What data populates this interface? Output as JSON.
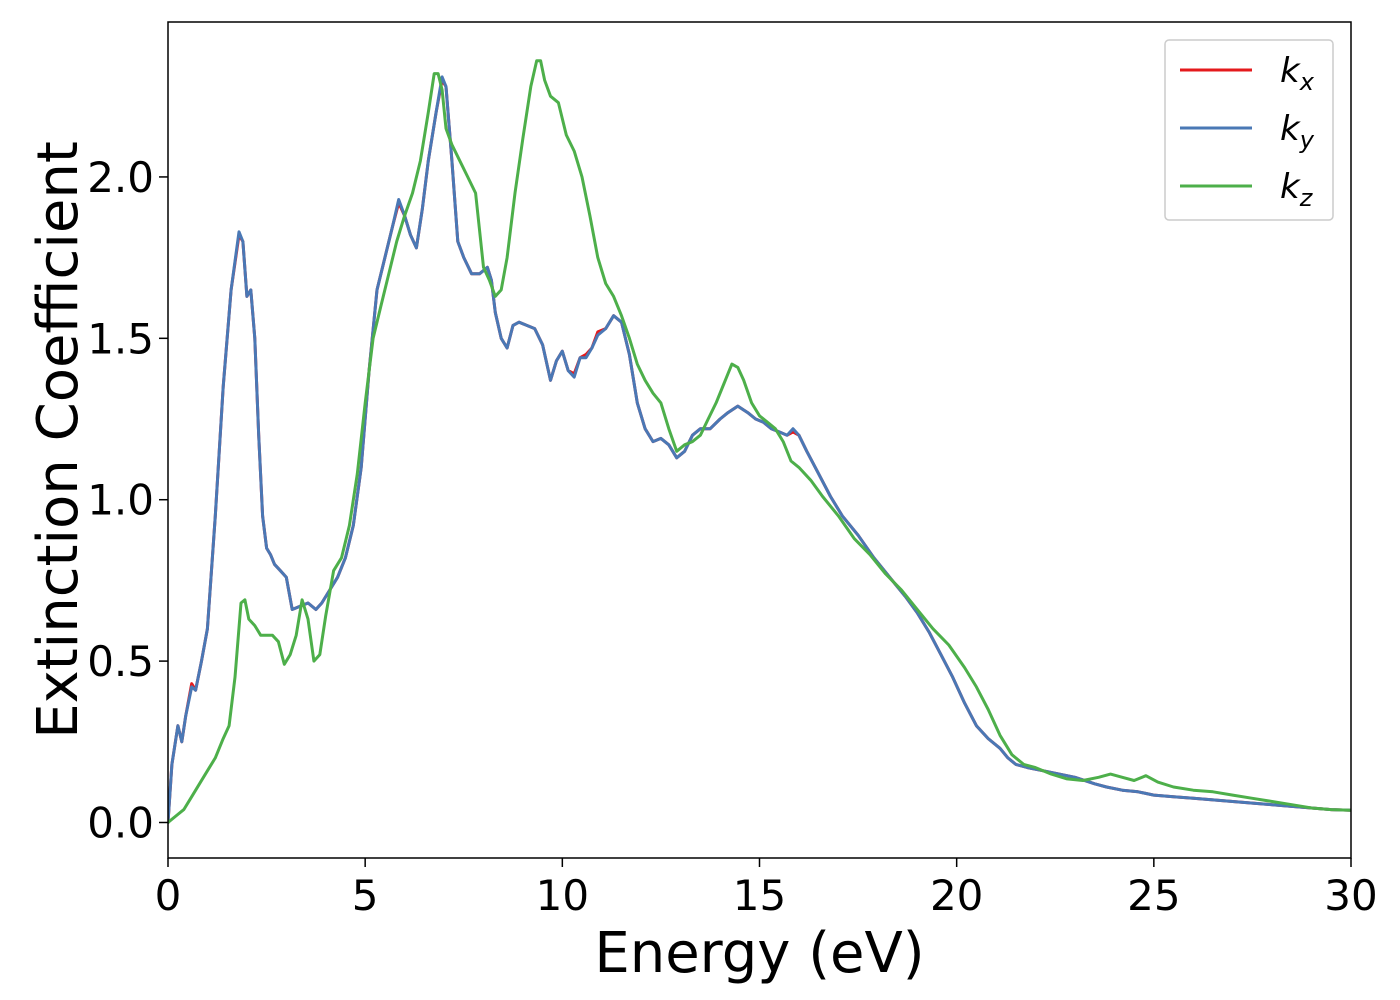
{
  "chart_data": {
    "type": "line",
    "title": "",
    "xlabel": "Energy (eV)",
    "ylabel": "Extinction Coefficient",
    "xlim": [
      0,
      30
    ],
    "ylim": [
      -0.11,
      2.48
    ],
    "xticks": [
      0,
      5,
      10,
      15,
      20,
      25,
      30
    ],
    "xtick_labels": [
      "0",
      "5",
      "10",
      "15",
      "20",
      "25",
      "30"
    ],
    "yticks": [
      0.0,
      0.5,
      1.0,
      1.5,
      2.0
    ],
    "ytick_labels": [
      "0.0",
      "0.5",
      "1.0",
      "1.5",
      "2.0"
    ],
    "grid": false,
    "legend_position": "top-right",
    "series": [
      {
        "name": "k_x",
        "legend_base": "k",
        "legend_sub": "x",
        "color": "#e41a1c",
        "x": [
          0,
          0.1,
          0.25,
          0.35,
          0.45,
          0.6,
          0.7,
          0.85,
          1.0,
          1.2,
          1.4,
          1.6,
          1.8,
          1.9,
          2.0,
          2.1,
          2.2,
          2.3,
          2.4,
          2.5,
          2.6,
          2.7,
          2.85,
          3.0,
          3.15,
          3.35,
          3.55,
          3.75,
          3.9,
          4.1,
          4.3,
          4.5,
          4.7,
          4.9,
          5.1,
          5.3,
          5.5,
          5.7,
          5.85,
          6.0,
          6.15,
          6.3,
          6.45,
          6.6,
          6.8,
          6.95,
          7.05,
          7.2,
          7.35,
          7.5,
          7.7,
          7.9,
          8.1,
          8.2,
          8.3,
          8.45,
          8.6,
          8.75,
          8.9,
          9.1,
          9.3,
          9.5,
          9.7,
          9.85,
          10.0,
          10.15,
          10.3,
          10.45,
          10.6,
          10.75,
          10.9,
          11.1,
          11.3,
          11.5,
          11.7,
          11.9,
          12.1,
          12.3,
          12.5,
          12.7,
          12.9,
          13.1,
          13.3,
          13.5,
          13.75,
          14.0,
          14.2,
          14.45,
          14.7,
          14.9,
          15.1,
          15.3,
          15.5,
          15.7,
          15.85,
          16.0,
          16.2,
          16.5,
          16.8,
          17.1,
          17.5,
          17.9,
          18.3,
          18.7,
          19.0,
          19.3,
          19.6,
          19.9,
          20.2,
          20.5,
          20.8,
          21.1,
          21.3,
          21.5,
          21.8,
          22.2,
          22.6,
          23.0,
          23.5,
          23.8,
          24.2,
          24.6,
          25.0,
          25.5,
          26.0,
          26.5,
          27.0,
          27.5,
          28.0,
          28.5,
          29.0,
          29.5,
          30.0
        ],
        "y": [
          0.0,
          0.18,
          0.3,
          0.25,
          0.33,
          0.43,
          0.41,
          0.5,
          0.6,
          0.95,
          1.35,
          1.65,
          1.82,
          1.8,
          1.63,
          1.65,
          1.5,
          1.2,
          0.95,
          0.85,
          0.83,
          0.8,
          0.78,
          0.76,
          0.66,
          0.67,
          0.68,
          0.66,
          0.68,
          0.72,
          0.76,
          0.82,
          0.92,
          1.1,
          1.4,
          1.65,
          1.75,
          1.85,
          1.92,
          1.88,
          1.82,
          1.78,
          1.9,
          2.05,
          2.2,
          2.3,
          2.28,
          2.05,
          1.8,
          1.75,
          1.7,
          1.7,
          1.72,
          1.68,
          1.58,
          1.5,
          1.47,
          1.54,
          1.55,
          1.54,
          1.53,
          1.48,
          1.37,
          1.43,
          1.46,
          1.4,
          1.39,
          1.44,
          1.45,
          1.47,
          1.52,
          1.53,
          1.57,
          1.55,
          1.45,
          1.3,
          1.22,
          1.18,
          1.19,
          1.17,
          1.13,
          1.15,
          1.2,
          1.22,
          1.22,
          1.25,
          1.27,
          1.29,
          1.27,
          1.25,
          1.24,
          1.22,
          1.21,
          1.2,
          1.21,
          1.2,
          1.15,
          1.08,
          1.01,
          0.95,
          0.89,
          0.82,
          0.76,
          0.7,
          0.65,
          0.59,
          0.52,
          0.45,
          0.37,
          0.3,
          0.26,
          0.23,
          0.2,
          0.18,
          0.17,
          0.16,
          0.15,
          0.14,
          0.12,
          0.11,
          0.1,
          0.095,
          0.085,
          0.08,
          0.075,
          0.07,
          0.065,
          0.06,
          0.055,
          0.05,
          0.045,
          0.04,
          0.038
        ]
      },
      {
        "name": "k_y",
        "legend_base": "k",
        "legend_sub": "y",
        "color": "#4a78b5",
        "x": [
          0,
          0.1,
          0.25,
          0.35,
          0.45,
          0.6,
          0.7,
          0.85,
          1.0,
          1.2,
          1.4,
          1.6,
          1.8,
          1.9,
          2.0,
          2.1,
          2.2,
          2.3,
          2.4,
          2.5,
          2.6,
          2.7,
          2.85,
          3.0,
          3.15,
          3.35,
          3.55,
          3.75,
          3.9,
          4.1,
          4.3,
          4.5,
          4.7,
          4.9,
          5.1,
          5.3,
          5.5,
          5.7,
          5.85,
          6.0,
          6.15,
          6.3,
          6.45,
          6.6,
          6.8,
          6.95,
          7.05,
          7.2,
          7.35,
          7.5,
          7.7,
          7.9,
          8.1,
          8.2,
          8.3,
          8.45,
          8.6,
          8.75,
          8.9,
          9.1,
          9.3,
          9.5,
          9.7,
          9.85,
          10.0,
          10.15,
          10.3,
          10.45,
          10.6,
          10.75,
          10.9,
          11.1,
          11.3,
          11.5,
          11.7,
          11.9,
          12.1,
          12.3,
          12.5,
          12.7,
          12.9,
          13.1,
          13.3,
          13.5,
          13.75,
          14.0,
          14.2,
          14.45,
          14.7,
          14.9,
          15.1,
          15.3,
          15.5,
          15.7,
          15.85,
          16.0,
          16.2,
          16.5,
          16.8,
          17.1,
          17.5,
          17.9,
          18.3,
          18.7,
          19.0,
          19.3,
          19.6,
          19.9,
          20.2,
          20.5,
          20.8,
          21.1,
          21.3,
          21.5,
          21.8,
          22.2,
          22.6,
          23.0,
          23.5,
          23.8,
          24.2,
          24.6,
          25.0,
          25.5,
          26.0,
          26.5,
          27.0,
          27.5,
          28.0,
          28.5,
          29.0,
          29.5,
          30.0
        ],
        "y": [
          0.0,
          0.18,
          0.3,
          0.25,
          0.33,
          0.42,
          0.41,
          0.5,
          0.6,
          0.95,
          1.35,
          1.65,
          1.83,
          1.8,
          1.63,
          1.65,
          1.5,
          1.2,
          0.95,
          0.85,
          0.83,
          0.8,
          0.78,
          0.76,
          0.66,
          0.67,
          0.68,
          0.66,
          0.68,
          0.72,
          0.76,
          0.82,
          0.92,
          1.1,
          1.4,
          1.65,
          1.75,
          1.85,
          1.93,
          1.88,
          1.82,
          1.78,
          1.9,
          2.05,
          2.2,
          2.31,
          2.28,
          2.05,
          1.8,
          1.75,
          1.7,
          1.7,
          1.72,
          1.68,
          1.58,
          1.5,
          1.47,
          1.54,
          1.55,
          1.54,
          1.53,
          1.48,
          1.37,
          1.43,
          1.46,
          1.4,
          1.38,
          1.44,
          1.44,
          1.47,
          1.51,
          1.53,
          1.57,
          1.55,
          1.45,
          1.3,
          1.22,
          1.18,
          1.19,
          1.17,
          1.13,
          1.15,
          1.2,
          1.22,
          1.22,
          1.25,
          1.27,
          1.29,
          1.27,
          1.25,
          1.24,
          1.22,
          1.21,
          1.2,
          1.22,
          1.2,
          1.15,
          1.08,
          1.01,
          0.95,
          0.89,
          0.82,
          0.76,
          0.7,
          0.65,
          0.59,
          0.52,
          0.45,
          0.37,
          0.3,
          0.26,
          0.23,
          0.2,
          0.18,
          0.17,
          0.16,
          0.15,
          0.14,
          0.12,
          0.11,
          0.1,
          0.095,
          0.085,
          0.08,
          0.075,
          0.07,
          0.065,
          0.06,
          0.055,
          0.05,
          0.045,
          0.04,
          0.038
        ]
      },
      {
        "name": "k_z",
        "legend_base": "k",
        "legend_sub": "z",
        "color": "#4daf4a",
        "x": [
          0,
          0.2,
          0.4,
          0.6,
          0.8,
          1.0,
          1.2,
          1.4,
          1.55,
          1.7,
          1.85,
          1.95,
          2.05,
          2.2,
          2.35,
          2.5,
          2.65,
          2.8,
          2.95,
          3.1,
          3.25,
          3.4,
          3.55,
          3.7,
          3.85,
          4.0,
          4.2,
          4.4,
          4.6,
          4.8,
          5.0,
          5.2,
          5.4,
          5.6,
          5.8,
          6.0,
          6.2,
          6.4,
          6.6,
          6.75,
          6.85,
          6.95,
          7.05,
          7.2,
          7.4,
          7.6,
          7.8,
          8.0,
          8.15,
          8.3,
          8.45,
          8.6,
          8.8,
          9.0,
          9.2,
          9.35,
          9.45,
          9.55,
          9.7,
          9.9,
          10.1,
          10.3,
          10.5,
          10.7,
          10.9,
          11.1,
          11.3,
          11.5,
          11.7,
          11.9,
          12.1,
          12.3,
          12.5,
          12.7,
          12.9,
          13.1,
          13.3,
          13.5,
          13.7,
          13.9,
          14.1,
          14.3,
          14.45,
          14.6,
          14.8,
          15.0,
          15.2,
          15.4,
          15.6,
          15.8,
          16.0,
          16.3,
          16.6,
          17.0,
          17.4,
          17.8,
          18.2,
          18.6,
          19.0,
          19.4,
          19.8,
          20.2,
          20.5,
          20.8,
          21.1,
          21.4,
          21.7,
          22.0,
          22.4,
          22.8,
          23.2,
          23.6,
          23.9,
          24.2,
          24.5,
          24.8,
          25.1,
          25.5,
          26.0,
          26.5,
          27.0,
          27.5,
          28.0,
          28.5,
          29.0,
          29.5,
          30.0
        ],
        "y": [
          0.0,
          0.02,
          0.04,
          0.08,
          0.12,
          0.16,
          0.2,
          0.26,
          0.3,
          0.45,
          0.68,
          0.69,
          0.63,
          0.61,
          0.58,
          0.58,
          0.58,
          0.56,
          0.49,
          0.52,
          0.58,
          0.69,
          0.63,
          0.5,
          0.52,
          0.64,
          0.78,
          0.82,
          0.92,
          1.08,
          1.3,
          1.5,
          1.6,
          1.7,
          1.8,
          1.88,
          1.95,
          2.05,
          2.2,
          2.32,
          2.32,
          2.27,
          2.15,
          2.1,
          2.05,
          2.0,
          1.95,
          1.72,
          1.68,
          1.63,
          1.65,
          1.75,
          1.95,
          2.12,
          2.28,
          2.36,
          2.36,
          2.3,
          2.25,
          2.23,
          2.13,
          2.08,
          2.0,
          1.88,
          1.75,
          1.67,
          1.63,
          1.57,
          1.5,
          1.42,
          1.37,
          1.33,
          1.3,
          1.22,
          1.15,
          1.17,
          1.18,
          1.2,
          1.25,
          1.3,
          1.36,
          1.42,
          1.41,
          1.37,
          1.3,
          1.26,
          1.24,
          1.22,
          1.18,
          1.12,
          1.1,
          1.06,
          1.01,
          0.95,
          0.88,
          0.83,
          0.77,
          0.72,
          0.66,
          0.6,
          0.55,
          0.48,
          0.42,
          0.35,
          0.27,
          0.21,
          0.18,
          0.17,
          0.15,
          0.135,
          0.13,
          0.14,
          0.15,
          0.14,
          0.13,
          0.145,
          0.125,
          0.11,
          0.1,
          0.095,
          0.085,
          0.075,
          0.065,
          0.055,
          0.045,
          0.04,
          0.038
        ]
      }
    ]
  }
}
